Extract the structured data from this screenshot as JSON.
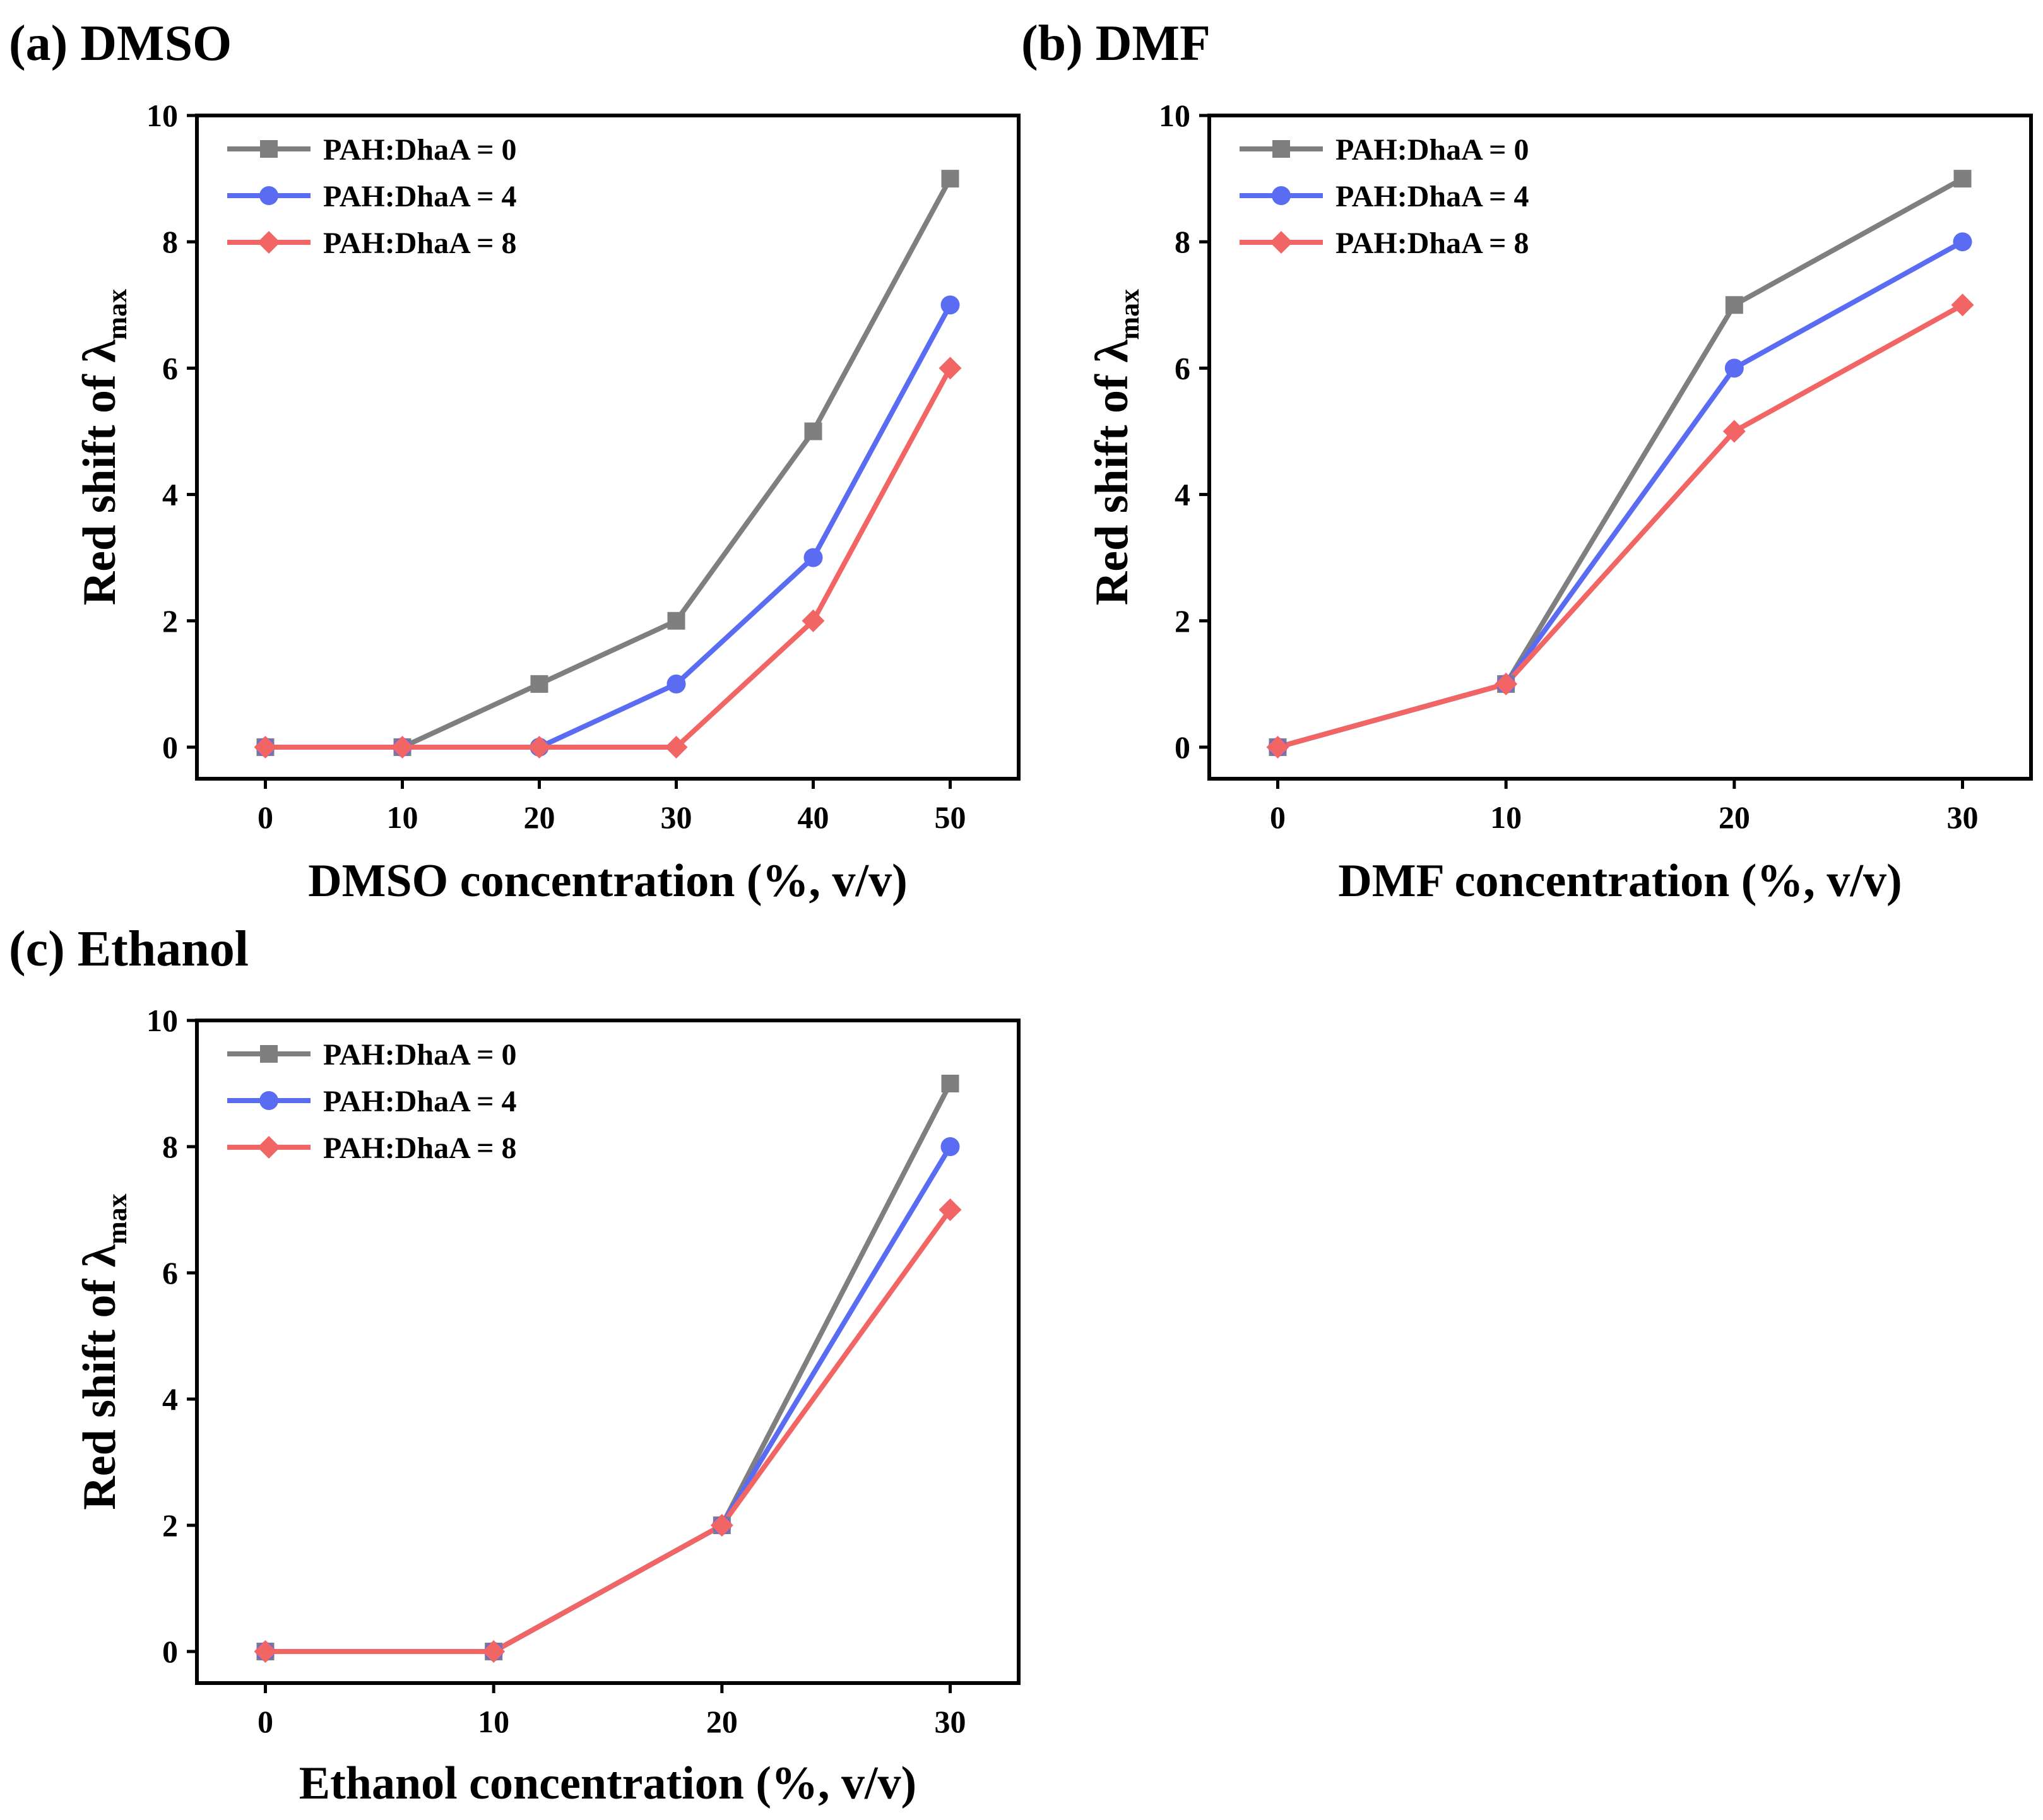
{
  "figure_colors": {
    "axis": "#000000"
  },
  "chart_data": [
    {
      "type": "line",
      "panel": "a",
      "title": "(a) DMSO",
      "xlabel": "DMSO concentration (%, v/v)",
      "ylabel_main": "Red shift of λ",
      "ylabel_sub": "max",
      "x": [
        0,
        10,
        20,
        30,
        40,
        50
      ],
      "xticks": [
        "0",
        "10",
        "20",
        "30",
        "40",
        "50"
      ],
      "yticks": [
        "0",
        "2",
        "4",
        "6",
        "8",
        "10"
      ],
      "xlim": [
        -5,
        55
      ],
      "ylim": [
        -0.5,
        10
      ],
      "legend_position": "top-left",
      "series": [
        {
          "name": "PAH:DhaA = 0",
          "marker": "square",
          "color": "#7f7f7f",
          "values": [
            0,
            0,
            1,
            2,
            5,
            9
          ]
        },
        {
          "name": "PAH:DhaA = 4",
          "marker": "circle",
          "color": "#5a6cf2",
          "values": [
            0,
            0,
            0,
            1,
            3,
            7
          ]
        },
        {
          "name": "PAH:DhaA = 8",
          "marker": "diamond",
          "color": "#f26565",
          "values": [
            0,
            0,
            0,
            0,
            2,
            6
          ]
        }
      ]
    },
    {
      "type": "line",
      "panel": "b",
      "title": "(b) DMF",
      "xlabel": "DMF concentration (%, v/v)",
      "ylabel_main": "Red shift of λ",
      "ylabel_sub": "max",
      "x": [
        0,
        10,
        20,
        30
      ],
      "xticks": [
        "0",
        "10",
        "20",
        "30"
      ],
      "yticks": [
        "0",
        "2",
        "4",
        "6",
        "8",
        "10"
      ],
      "xlim": [
        -3,
        33
      ],
      "ylim": [
        -0.5,
        10
      ],
      "legend_position": "top-left",
      "series": [
        {
          "name": "PAH:DhaA = 0",
          "marker": "square",
          "color": "#7f7f7f",
          "values": [
            0,
            1,
            7,
            9
          ]
        },
        {
          "name": "PAH:DhaA = 4",
          "marker": "circle",
          "color": "#5a6cf2",
          "values": [
            0,
            1,
            6,
            8
          ]
        },
        {
          "name": "PAH:DhaA = 8",
          "marker": "diamond",
          "color": "#f26565",
          "values": [
            0,
            1,
            5,
            7
          ]
        }
      ]
    },
    {
      "type": "line",
      "panel": "c",
      "title": "(c) Ethanol",
      "xlabel": "Ethanol concentration (%, v/v)",
      "ylabel_main": "Red shift of λ",
      "ylabel_sub": "max",
      "x": [
        0,
        10,
        20,
        30
      ],
      "xticks": [
        "0",
        "10",
        "20",
        "30"
      ],
      "yticks": [
        "0",
        "2",
        "4",
        "6",
        "8",
        "10"
      ],
      "xlim": [
        -3,
        33
      ],
      "ylim": [
        -0.5,
        10
      ],
      "legend_position": "top-left",
      "series": [
        {
          "name": "PAH:DhaA = 0",
          "marker": "square",
          "color": "#7f7f7f",
          "values": [
            0,
            0,
            2,
            9
          ]
        },
        {
          "name": "PAH:DhaA = 4",
          "marker": "circle",
          "color": "#5a6cf2",
          "values": [
            0,
            0,
            2,
            8
          ]
        },
        {
          "name": "PAH:DhaA = 8",
          "marker": "diamond",
          "color": "#f26565",
          "values": [
            0,
            0,
            2,
            7
          ]
        }
      ]
    }
  ]
}
